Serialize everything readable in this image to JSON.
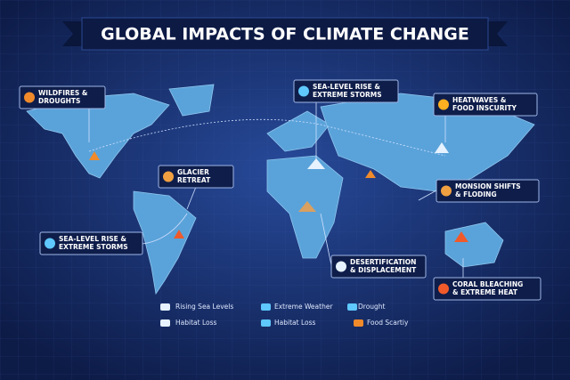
{
  "header": {
    "title": "GLOBAL IMPACTS OF CLIMATE CHANGE"
  },
  "callouts": [
    {
      "lines": [
        "WILDFIRES &",
        "DROUGHTS"
      ]
    },
    {
      "lines": [
        "SEA-LEVEL RISE &",
        "EXTREME STORMS"
      ]
    },
    {
      "lines": [
        "HEATWAVES &",
        "FOOD INSCURITY"
      ]
    },
    {
      "lines": [
        "GLACIER",
        "RETREAT"
      ]
    },
    {
      "lines": [
        "MONSION SHIFTS",
        "& FLODING"
      ]
    },
    {
      "lines": [
        "SEA-LEVEL RISE &",
        "EXTREME STORMS"
      ]
    },
    {
      "lines": [
        "DESERTIFICATION",
        "& DISPLACEMENT"
      ]
    },
    {
      "lines": [
        "CORAL BLEACHING",
        "& EXTREME HEAT"
      ]
    }
  ],
  "legend": [
    "Rising Sea Levels",
    "Extreme Weather",
    "Drought",
    "Habitat Loss",
    "Habitat Loss",
    "Food Scartiy"
  ]
}
